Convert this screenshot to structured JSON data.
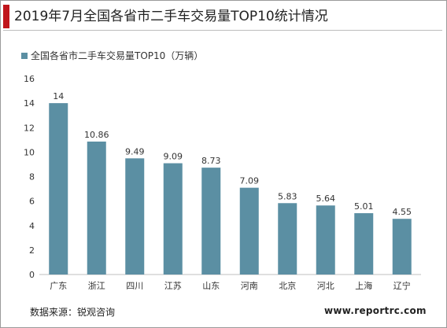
{
  "header": {
    "title": "2019年7月全国各省市二手车交易量TOP10统计情况"
  },
  "footer": {
    "source": "数据来源：锐观咨询",
    "site": "www.reportrc.com"
  },
  "colors": {
    "bar": "#5b8fa3",
    "accent": "#c0151b"
  },
  "chart_data": {
    "type": "bar",
    "categories": [
      "广东",
      "浙江",
      "四川",
      "江苏",
      "山东",
      "河南",
      "北京",
      "河北",
      "上海",
      "辽宁"
    ],
    "series": [
      {
        "name": "全国各省市二手车交易量TOP10（万辆）",
        "values": [
          14,
          10.86,
          9.49,
          9.09,
          8.73,
          7.09,
          5.83,
          5.64,
          5.01,
          4.55
        ]
      }
    ],
    "data_labels": [
      "14",
      "10.86",
      "9.49",
      "9.09",
      "8.73",
      "7.09",
      "5.83",
      "5.64",
      "5.01",
      "4.55"
    ],
    "yticks": [
      "0",
      "2",
      "4",
      "6",
      "8",
      "10",
      "12",
      "14",
      "16"
    ],
    "ylim": [
      0,
      16
    ],
    "legend_position": "top-left",
    "grid": false
  }
}
